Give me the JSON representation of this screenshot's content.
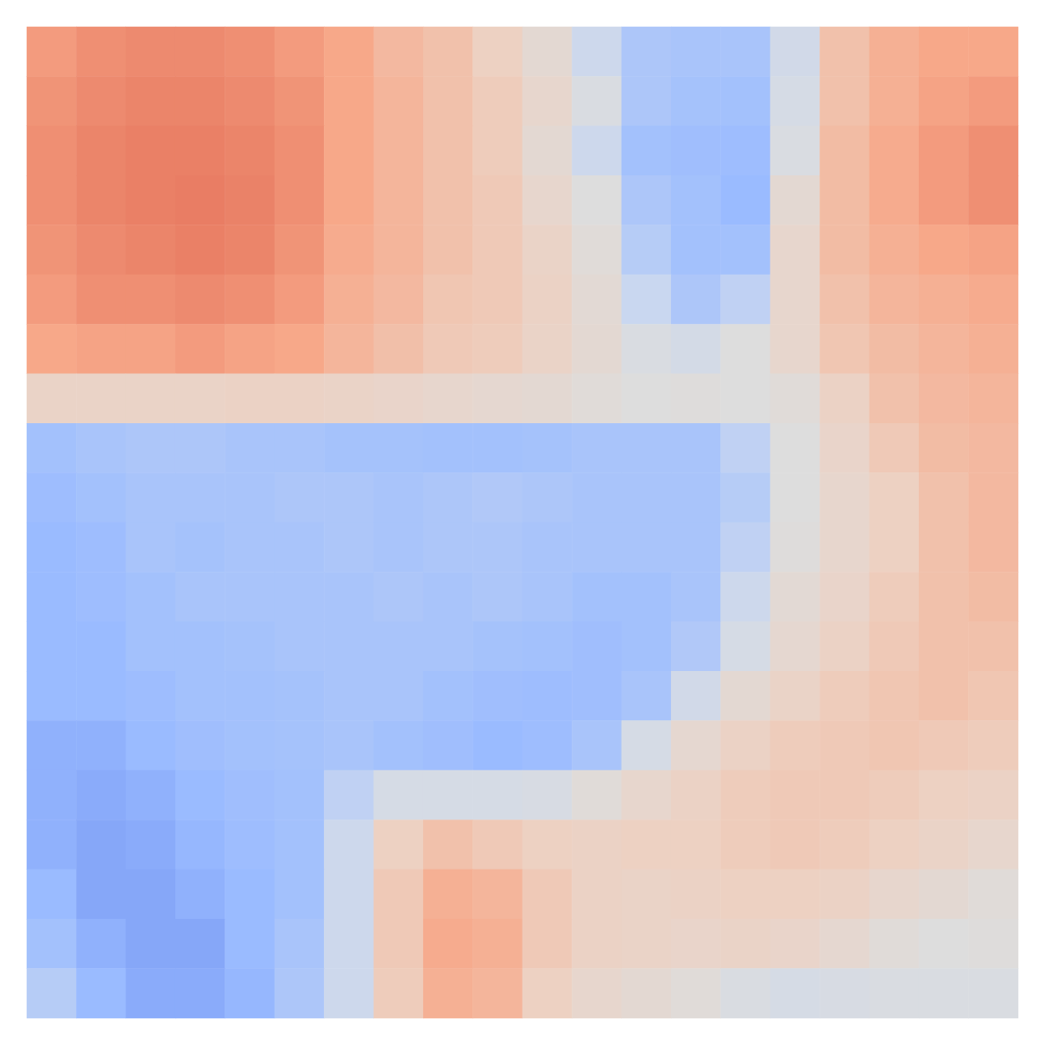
{
  "chart_data": {
    "type": "heatmap",
    "tick_labels": false,
    "zlim": [
      -1,
      1
    ],
    "cells": [
      [
        0.55,
        0.6,
        0.62,
        0.62,
        0.6,
        0.55,
        0.5,
        0.4,
        0.35,
        0.25,
        0.1,
        -0.2,
        -0.4,
        -0.42,
        -0.42,
        -0.15,
        0.35,
        0.45,
        0.5,
        0.5
      ],
      [
        0.58,
        0.62,
        0.64,
        0.64,
        0.62,
        0.58,
        0.5,
        0.42,
        0.35,
        0.28,
        0.15,
        -0.05,
        -0.4,
        -0.44,
        -0.45,
        -0.1,
        0.35,
        0.45,
        0.52,
        0.55
      ],
      [
        0.6,
        0.64,
        0.66,
        0.66,
        0.64,
        0.6,
        0.5,
        0.42,
        0.35,
        0.28,
        0.1,
        -0.2,
        -0.45,
        -0.47,
        -0.48,
        -0.05,
        0.38,
        0.48,
        0.55,
        0.6
      ],
      [
        0.6,
        0.64,
        0.66,
        0.67,
        0.65,
        0.6,
        0.5,
        0.42,
        0.35,
        0.3,
        0.15,
        0.0,
        -0.4,
        -0.45,
        -0.5,
        0.1,
        0.38,
        0.48,
        0.55,
        0.6
      ],
      [
        0.58,
        0.62,
        0.64,
        0.66,
        0.64,
        0.58,
        0.48,
        0.42,
        0.35,
        0.3,
        0.2,
        0.05,
        -0.35,
        -0.45,
        -0.45,
        0.15,
        0.38,
        0.45,
        0.5,
        0.52
      ],
      [
        0.55,
        0.6,
        0.6,
        0.62,
        0.6,
        0.55,
        0.45,
        0.4,
        0.32,
        0.3,
        0.22,
        0.08,
        -0.25,
        -0.4,
        -0.3,
        0.15,
        0.35,
        0.42,
        0.45,
        0.48
      ],
      [
        0.5,
        0.52,
        0.52,
        0.55,
        0.52,
        0.5,
        0.42,
        0.36,
        0.3,
        0.28,
        0.2,
        0.1,
        -0.05,
        -0.12,
        0.0,
        0.15,
        0.32,
        0.38,
        0.42,
        0.45
      ],
      [
        0.2,
        0.2,
        0.2,
        0.2,
        0.22,
        0.22,
        0.2,
        0.18,
        0.15,
        0.12,
        0.1,
        0.05,
        0.0,
        0.02,
        0.0,
        0.05,
        0.22,
        0.35,
        0.4,
        0.42
      ],
      [
        -0.45,
        -0.42,
        -0.4,
        -0.4,
        -0.42,
        -0.42,
        -0.44,
        -0.44,
        -0.45,
        -0.45,
        -0.44,
        -0.42,
        -0.42,
        -0.42,
        -0.3,
        0.0,
        0.18,
        0.3,
        0.38,
        0.4
      ],
      [
        -0.48,
        -0.45,
        -0.42,
        -0.42,
        -0.42,
        -0.4,
        -0.4,
        -0.42,
        -0.4,
        -0.38,
        -0.4,
        -0.42,
        -0.42,
        -0.42,
        -0.35,
        0.0,
        0.15,
        0.25,
        0.35,
        0.4
      ],
      [
        -0.5,
        -0.48,
        -0.42,
        -0.44,
        -0.42,
        -0.42,
        -0.4,
        -0.42,
        -0.4,
        -0.4,
        -0.42,
        -0.42,
        -0.42,
        -0.42,
        -0.3,
        0.02,
        0.15,
        0.25,
        0.35,
        0.4
      ],
      [
        -0.5,
        -0.48,
        -0.45,
        -0.42,
        -0.42,
        -0.42,
        -0.42,
        -0.4,
        -0.42,
        -0.4,
        -0.42,
        -0.45,
        -0.45,
        -0.42,
        -0.2,
        0.08,
        0.18,
        0.28,
        0.35,
        0.38
      ],
      [
        -0.5,
        -0.5,
        -0.45,
        -0.45,
        -0.44,
        -0.42,
        -0.42,
        -0.42,
        -0.42,
        -0.44,
        -0.45,
        -0.47,
        -0.45,
        -0.38,
        -0.1,
        0.12,
        0.22,
        0.3,
        0.35,
        0.35
      ],
      [
        -0.5,
        -0.5,
        -0.48,
        -0.45,
        -0.45,
        -0.44,
        -0.42,
        -0.42,
        -0.45,
        -0.47,
        -0.48,
        -0.47,
        -0.42,
        -0.15,
        0.1,
        0.2,
        0.28,
        0.32,
        0.35,
        0.32
      ],
      [
        -0.55,
        -0.55,
        -0.5,
        -0.47,
        -0.45,
        -0.44,
        -0.42,
        -0.45,
        -0.47,
        -0.5,
        -0.48,
        -0.42,
        -0.1,
        0.12,
        0.22,
        0.28,
        0.3,
        0.32,
        0.3,
        0.28
      ],
      [
        -0.55,
        -0.58,
        -0.55,
        -0.5,
        -0.47,
        -0.45,
        -0.3,
        -0.1,
        -0.1,
        -0.1,
        -0.08,
        0.05,
        0.15,
        0.22,
        0.28,
        0.3,
        0.3,
        0.28,
        0.25,
        0.22
      ],
      [
        -0.55,
        -0.6,
        -0.58,
        -0.52,
        -0.48,
        -0.45,
        -0.2,
        0.25,
        0.35,
        0.3,
        0.25,
        0.22,
        0.25,
        0.25,
        0.28,
        0.3,
        0.28,
        0.25,
        0.2,
        0.15
      ],
      [
        -0.5,
        -0.6,
        -0.6,
        -0.55,
        -0.5,
        -0.45,
        -0.2,
        0.3,
        0.45,
        0.42,
        0.3,
        0.22,
        0.2,
        0.22,
        0.25,
        0.25,
        0.22,
        0.15,
        0.1,
        0.05
      ],
      [
        -0.45,
        -0.55,
        -0.6,
        -0.6,
        -0.5,
        -0.42,
        -0.2,
        0.3,
        0.48,
        0.45,
        0.3,
        0.22,
        0.2,
        0.18,
        0.2,
        0.18,
        0.12,
        0.05,
        0.0,
        0.02
      ],
      [
        -0.35,
        -0.5,
        -0.58,
        -0.58,
        -0.52,
        -0.4,
        -0.2,
        0.28,
        0.45,
        0.42,
        0.25,
        0.15,
        0.1,
        0.05,
        -0.05,
        -0.1,
        -0.08,
        -0.05,
        -0.05,
        -0.05
      ]
    ]
  }
}
